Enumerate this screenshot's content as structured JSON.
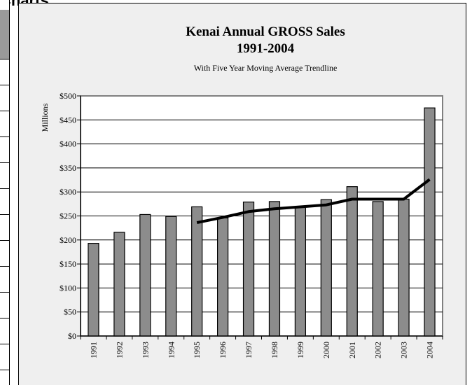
{
  "page": {
    "top_fragment": "Charts"
  },
  "chart_data": {
    "type": "bar",
    "title": "Kenai Annual GROSS Sales",
    "title_line2": "1991-2004",
    "subtitle": "With Five Year Moving Average Trendline",
    "ylabel": "Millions",
    "xlabel": "",
    "categories": [
      "1991",
      "1992",
      "1993",
      "1994",
      "1995",
      "1996",
      "1997",
      "1998",
      "1999",
      "2000",
      "2001",
      "2002",
      "2003",
      "2004"
    ],
    "series": [
      {
        "values": [
          193,
          216,
          253,
          249,
          269,
          246,
          279,
          280,
          269,
          284,
          311,
          280,
          285,
          475
        ]
      }
    ],
    "trendline": {
      "type": "line",
      "categories": [
        "1995",
        "1996",
        "1997",
        "1998",
        "1999",
        "2000",
        "2001",
        "2002",
        "2003",
        "2004"
      ],
      "values": [
        236,
        247,
        259,
        265,
        269,
        273,
        285,
        285,
        285,
        326
      ]
    },
    "ylim": [
      0,
      500
    ],
    "y_ticks": [
      "$0",
      "$50",
      "$100",
      "$150",
      "$200",
      "$250",
      "$300",
      "$350",
      "$400",
      "$450",
      "$500"
    ],
    "grid": true,
    "colors": {
      "bar_fill": "#8c8c8c",
      "bar_stroke": "#000000",
      "trendline": "#000000",
      "plot_bg": "#ffffff",
      "chart_bg": "#efefef"
    }
  }
}
